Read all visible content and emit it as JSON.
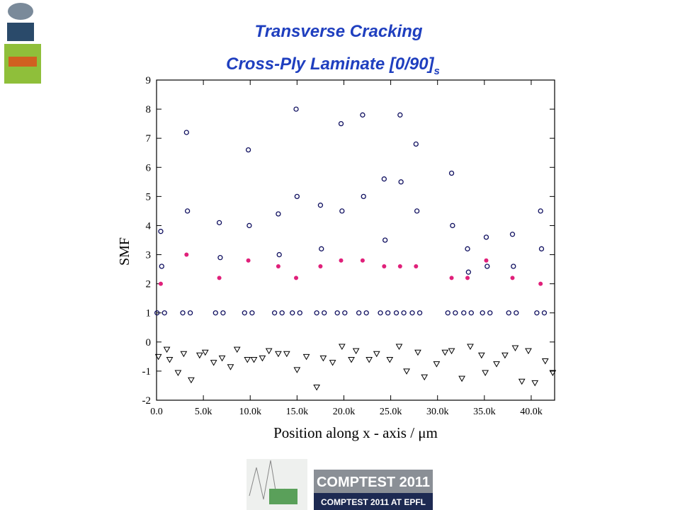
{
  "chart_data": {
    "type": "scatter",
    "title": "Transverse Cracking",
    "subtitle": "Cross-Ply Laminate [0/90]",
    "subtitle_subscript": "s",
    "xlabel": "Position along x - axis / μm",
    "ylabel": "SMF",
    "xlim": [
      0,
      42500
    ],
    "ylim": [
      -2,
      9
    ],
    "xticks": [
      {
        "value": 0,
        "label": "0.0"
      },
      {
        "value": 5000,
        "label": "5.0k"
      },
      {
        "value": 10000,
        "label": "10.0k"
      },
      {
        "value": 15000,
        "label": "15.0k"
      },
      {
        "value": 20000,
        "label": "20.0k"
      },
      {
        "value": 25000,
        "label": "25.0k"
      },
      {
        "value": 30000,
        "label": "30.0k"
      },
      {
        "value": 35000,
        "label": "35.0k"
      },
      {
        "value": 40000,
        "label": "40.0k"
      }
    ],
    "yticks": [
      -2,
      -1,
      0,
      1,
      2,
      3,
      4,
      5,
      6,
      7,
      8,
      9
    ],
    "series": [
      {
        "color": "#101060",
        "marker": "circle",
        "x": [
          50,
          450,
          550,
          850,
          2800,
          3200,
          3300,
          3600,
          6300,
          6700,
          6800,
          7100,
          9400,
          9800,
          9900,
          10200,
          12600,
          13000,
          13100,
          13400,
          14500,
          14900,
          15000,
          15300,
          17100,
          17500,
          17600,
          17900,
          19300,
          19700,
          19800,
          20100,
          21600,
          22000,
          22100,
          22400,
          23900,
          24300,
          24400,
          24700,
          25600,
          26000,
          26100,
          26400,
          27300,
          27700,
          27800,
          28100,
          31100,
          31500,
          31600,
          31900,
          32800,
          33200,
          33300,
          33600,
          34800,
          35200,
          35300,
          35600,
          37600,
          38000,
          38100,
          38400,
          40600,
          41000,
          41100,
          41400
        ],
        "values": [
          1,
          3.8,
          2.6,
          1,
          1,
          7.2,
          4.5,
          1,
          1,
          4.1,
          2.9,
          1,
          1,
          6.6,
          4.0,
          1,
          1,
          4.4,
          3.0,
          1,
          1,
          8.0,
          5.0,
          1,
          1,
          4.7,
          3.2,
          1,
          1,
          7.5,
          4.5,
          1,
          1,
          7.8,
          5.0,
          1,
          1,
          5.6,
          3.5,
          1,
          1,
          7.8,
          5.5,
          1,
          1,
          6.8,
          4.5,
          1,
          1,
          5.8,
          4.0,
          1,
          1,
          3.2,
          2.4,
          1,
          1,
          3.6,
          2.6,
          1,
          1,
          3.7,
          2.6,
          1,
          1,
          4.5,
          3.2,
          1
        ]
      },
      {
        "color": "#e0207a",
        "marker": "dot",
        "x": [
          450,
          3200,
          6700,
          9800,
          13000,
          14900,
          17500,
          19700,
          22000,
          24300,
          26000,
          27700,
          31500,
          33200,
          35200,
          38000,
          41000
        ],
        "values": [
          2.0,
          3.0,
          2.2,
          2.8,
          2.6,
          2.2,
          2.6,
          2.8,
          2.8,
          2.6,
          2.6,
          2.6,
          2.2,
          2.2,
          2.8,
          2.2,
          2.0
        ]
      },
      {
        "color": "#000000",
        "marker": "triangle-down",
        "x": [
          200,
          1100,
          1400,
          2300,
          2900,
          3700,
          4600,
          5200,
          6100,
          7000,
          7900,
          8600,
          9700,
          10400,
          11300,
          12000,
          13000,
          13900,
          15000,
          16000,
          17100,
          17800,
          18800,
          19800,
          20800,
          21300,
          22700,
          23500,
          24900,
          25900,
          26700,
          27900,
          28600,
          29900,
          30800,
          31500,
          32600,
          33500,
          34700,
          35100,
          36300,
          37200,
          38300,
          39000,
          39700,
          40400,
          41500,
          42300
        ],
        "values": [
          -0.5,
          -0.25,
          -0.6,
          -1.05,
          -0.4,
          -1.3,
          -0.45,
          -0.35,
          -0.7,
          -0.55,
          -0.85,
          -0.25,
          -0.6,
          -0.6,
          -0.55,
          -0.3,
          -0.4,
          -0.4,
          -0.95,
          -0.5,
          -1.55,
          -0.55,
          -0.7,
          -0.15,
          -0.6,
          -0.3,
          -0.6,
          -0.4,
          -0.6,
          -0.15,
          -1.0,
          -0.35,
          -1.2,
          -0.75,
          -0.35,
          -0.3,
          -1.25,
          -0.15,
          -0.45,
          -1.05,
          -0.75,
          -0.45,
          -0.2,
          -1.35,
          -0.3,
          -1.4,
          -0.65,
          -1.05
        ]
      }
    ]
  },
  "footer": {
    "banner": "COMPTEST 2011",
    "banner_sub": "COMPTEST 2011 AT EPFL"
  }
}
